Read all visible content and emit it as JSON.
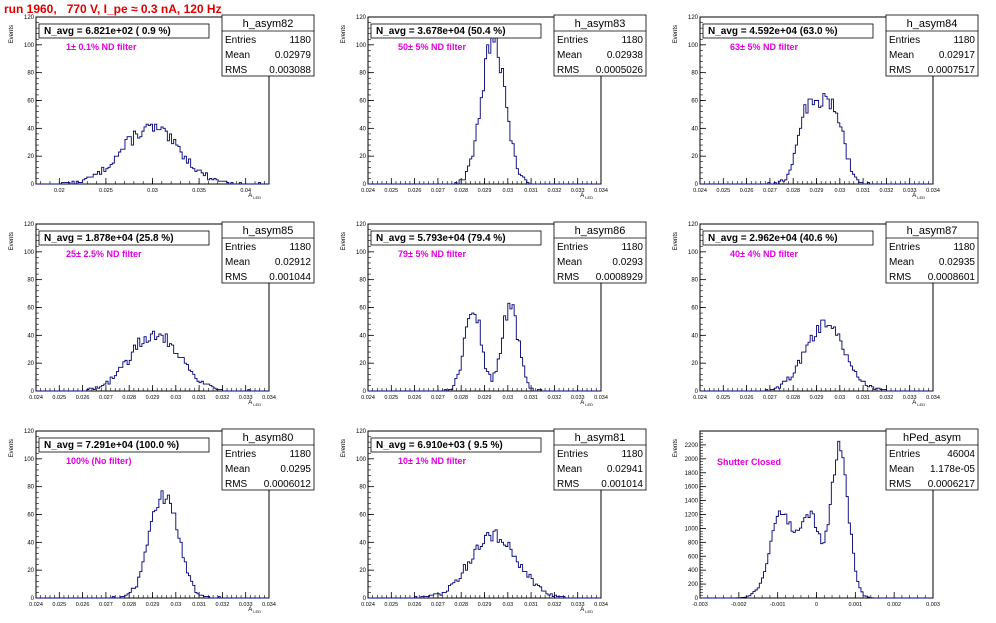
{
  "title": "run 1960,   770 V, I_pe ≈ 0.3 nA, 120 Hz",
  "colors": {
    "line": "#00007a",
    "stats_text": "#000000",
    "filter_text": "#e000e0",
    "title_text": "#e00000"
  },
  "chart_data": [
    {
      "type": "histogram",
      "name": "h_asym82",
      "navg": "N_avg = 6.821e+02 ( 0.9 %)",
      "filter": "1± 0.1% ND filter",
      "entries": "1180",
      "mean": "0.02979",
      "rms": "0.003088",
      "ylabel": "Events",
      "xlabel": "A_LED",
      "xlim": [
        0.0175,
        0.0425
      ],
      "ylim": [
        0,
        120
      ],
      "xticks": [
        "0.02",
        "0.025",
        "0.03",
        "0.035",
        "0.04"
      ],
      "yticks": [
        "20",
        "40",
        "60",
        "80",
        "100",
        "120"
      ],
      "shape": [
        {
          "mu": 0.02979,
          "sigma": 0.003088,
          "peak": 40
        }
      ],
      "bins": []
    },
    {
      "type": "histogram",
      "name": "h_asym83",
      "navg": "N_avg = 3.678e+04 (50.4 %)",
      "filter": "50± 5% ND filter",
      "entries": "1180",
      "mean": "0.02938",
      "rms": "0.0005026",
      "ylabel": "Events",
      "xlabel": "A_LED",
      "xlim": [
        0.024,
        0.034
      ],
      "ylim": [
        0,
        120
      ],
      "xticks": [
        "0.024",
        "0.025",
        "0.026",
        "0.027",
        "0.028",
        "0.029",
        "0.03",
        "0.031",
        "0.032",
        "0.033",
        "0.034"
      ],
      "yticks": [
        "20",
        "40",
        "60",
        "80",
        "100",
        "120"
      ],
      "shape": [
        {
          "mu": 0.02938,
          "sigma": 0.0005026,
          "peak": 105
        }
      ],
      "bins": []
    },
    {
      "type": "histogram",
      "name": "h_asym84",
      "navg": "N_avg = 4.592e+04 (63.0 %)",
      "filter": "63± 5% ND filter",
      "entries": "1180",
      "mean": "0.02917",
      "rms": "0.0007517",
      "ylabel": "Events",
      "xlabel": "A_LED",
      "xlim": [
        0.024,
        0.034
      ],
      "ylim": [
        0,
        120
      ],
      "xticks": [
        "0.024",
        "0.025",
        "0.026",
        "0.027",
        "0.028",
        "0.029",
        "0.03",
        "0.031",
        "0.032",
        "0.033",
        "0.034"
      ],
      "yticks": [
        "20",
        "40",
        "60",
        "80",
        "100",
        "120"
      ],
      "shape": [
        {
          "mu": 0.0287,
          "sigma": 0.00045,
          "peak": 55
        },
        {
          "mu": 0.0297,
          "sigma": 0.00045,
          "peak": 54
        }
      ],
      "bins": []
    },
    {
      "type": "histogram",
      "name": "h_asym85",
      "navg": "N_avg = 1.878e+04 (25.8 %)",
      "filter": "25± 2.5% ND filter",
      "entries": "1180",
      "mean": "0.02912",
      "rms": "0.001044",
      "ylabel": "Events",
      "xlabel": "A_LED",
      "xlim": [
        0.024,
        0.034
      ],
      "ylim": [
        0,
        120
      ],
      "xticks": [
        "0.024",
        "0.025",
        "0.026",
        "0.027",
        "0.028",
        "0.029",
        "0.03",
        "0.031",
        "0.032",
        "0.033",
        "0.034"
      ],
      "yticks": [
        "20",
        "40",
        "60",
        "80",
        "100",
        "120"
      ],
      "shape": [
        {
          "mu": 0.02912,
          "sigma": 0.001044,
          "peak": 42
        }
      ],
      "bins": []
    },
    {
      "type": "histogram",
      "name": "h_asym86",
      "navg": "N_avg = 5.793e+04 (79.4 %)",
      "filter": "79± 5% ND filter",
      "entries": "1180",
      "mean": "0.0293",
      "rms": "0.0008929",
      "ylabel": "Events",
      "xlabel": "A_LED",
      "xlim": [
        0.024,
        0.034
      ],
      "ylim": [
        0,
        120
      ],
      "xticks": [
        "0.024",
        "0.025",
        "0.026",
        "0.027",
        "0.028",
        "0.029",
        "0.03",
        "0.031",
        "0.032",
        "0.033",
        "0.034"
      ],
      "yticks": [
        "20",
        "40",
        "60",
        "80",
        "100",
        "120"
      ],
      "shape": [
        {
          "mu": 0.0285,
          "sigma": 0.00035,
          "peak": 62
        },
        {
          "mu": 0.0301,
          "sigma": 0.00035,
          "peak": 62
        }
      ],
      "bins": []
    },
    {
      "type": "histogram",
      "name": "h_asym87",
      "navg": "N_avg = 2.962e+04 (40.6 %)",
      "filter": "40± 4% ND filter",
      "entries": "1180",
      "mean": "0.02935",
      "rms": "0.0008601",
      "ylabel": "Events",
      "xlabel": "A_LED",
      "xlim": [
        0.024,
        0.034
      ],
      "ylim": [
        0,
        120
      ],
      "xticks": [
        "0.024",
        "0.025",
        "0.026",
        "0.027",
        "0.028",
        "0.029",
        "0.03",
        "0.031",
        "0.032",
        "0.033",
        "0.034"
      ],
      "yticks": [
        "20",
        "40",
        "60",
        "80",
        "100",
        "120"
      ],
      "shape": [
        {
          "mu": 0.02935,
          "sigma": 0.00086,
          "peak": 48
        }
      ],
      "bins": []
    },
    {
      "type": "histogram",
      "name": "h_asym80",
      "navg": "N_avg = 7.291e+04 (100.0 %)",
      "filter": "100% (No filter)",
      "entries": "1180",
      "mean": "0.0295",
      "rms": "0.0006012",
      "ylabel": "Events",
      "xlabel": "A_LED",
      "xlim": [
        0.024,
        0.034
      ],
      "ylim": [
        0,
        120
      ],
      "xticks": [
        "0.024",
        "0.025",
        "0.026",
        "0.027",
        "0.028",
        "0.029",
        "0.03",
        "0.031",
        "0.032",
        "0.033",
        "0.034"
      ],
      "yticks": [
        "20",
        "40",
        "60",
        "80",
        "100",
        "120"
      ],
      "shape": [
        {
          "mu": 0.0295,
          "sigma": 0.0006012,
          "peak": 75
        }
      ],
      "bins": []
    },
    {
      "type": "histogram",
      "name": "h_asym81",
      "navg": "N_avg = 6.910e+03 ( 9.5 %)",
      "filter": "10± 1% ND filter",
      "entries": "1180",
      "mean": "0.02941",
      "rms": "0.001014",
      "ylabel": "Events",
      "xlabel": "A_LED",
      "xlim": [
        0.024,
        0.034
      ],
      "ylim": [
        0,
        120
      ],
      "xticks": [
        "0.024",
        "0.025",
        "0.026",
        "0.027",
        "0.028",
        "0.029",
        "0.03",
        "0.031",
        "0.032",
        "0.033",
        "0.034"
      ],
      "yticks": [
        "20",
        "40",
        "60",
        "80",
        "100",
        "120"
      ],
      "shape": [
        {
          "mu": 0.02941,
          "sigma": 0.001014,
          "peak": 46
        }
      ],
      "bins": []
    },
    {
      "type": "histogram",
      "name": "hPed_asym",
      "navg": "",
      "filter": "Shutter Closed",
      "entries": "46004",
      "mean": "1.178e-05",
      "rms": "0.0006217",
      "ylabel": "Events",
      "xlabel": "",
      "xlim": [
        -0.003,
        0.003
      ],
      "ylim": [
        0,
        2400
      ],
      "xticks": [
        "-0.003",
        "-0.002",
        "-0.001",
        "0",
        "0.001",
        "0.002",
        "0.003"
      ],
      "yticks": [
        "200",
        "400",
        "600",
        "800",
        "1000",
        "1200",
        "1400",
        "1600",
        "1800",
        "2000",
        "2200"
      ],
      "shape": [
        {
          "mu": -0.0009,
          "sigma": 0.0003,
          "peak": 1200
        },
        {
          "mu": -0.00015,
          "sigma": 0.00025,
          "peak": 1150
        },
        {
          "mu": 0.0006,
          "sigma": 0.00022,
          "peak": 2150
        }
      ],
      "bins": []
    }
  ]
}
